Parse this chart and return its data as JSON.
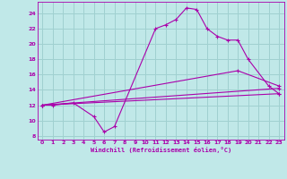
{
  "xlabel": "Windchill (Refroidissement éolien,°C)",
  "xlim": [
    -0.5,
    23.5
  ],
  "ylim": [
    7.5,
    25.5
  ],
  "yticks": [
    8,
    10,
    12,
    14,
    16,
    18,
    20,
    22,
    24
  ],
  "xticks": [
    0,
    1,
    2,
    3,
    4,
    5,
    6,
    7,
    8,
    9,
    10,
    11,
    12,
    13,
    14,
    15,
    16,
    17,
    18,
    19,
    20,
    21,
    22,
    23
  ],
  "background_color": "#c0e8e8",
  "grid_color": "#a0d0d0",
  "line_color": "#aa00aa",
  "series": [
    {
      "x": [
        0,
        1,
        3,
        5,
        6,
        7,
        11,
        12,
        13,
        14,
        15,
        16,
        17,
        18,
        19,
        20,
        22,
        23
      ],
      "y": [
        12,
        12,
        12.3,
        10.5,
        8.5,
        9.2,
        22.0,
        22.5,
        23.2,
        24.7,
        24.5,
        22.0,
        21.0,
        20.5,
        20.5,
        18.0,
        14.5,
        13.5
      ]
    },
    {
      "x": [
        0,
        23
      ],
      "y": [
        12,
        13.5
      ]
    },
    {
      "x": [
        0,
        23
      ],
      "y": [
        12,
        14.2
      ]
    },
    {
      "x": [
        0,
        19,
        23
      ],
      "y": [
        12,
        16.5,
        14.5
      ]
    }
  ]
}
